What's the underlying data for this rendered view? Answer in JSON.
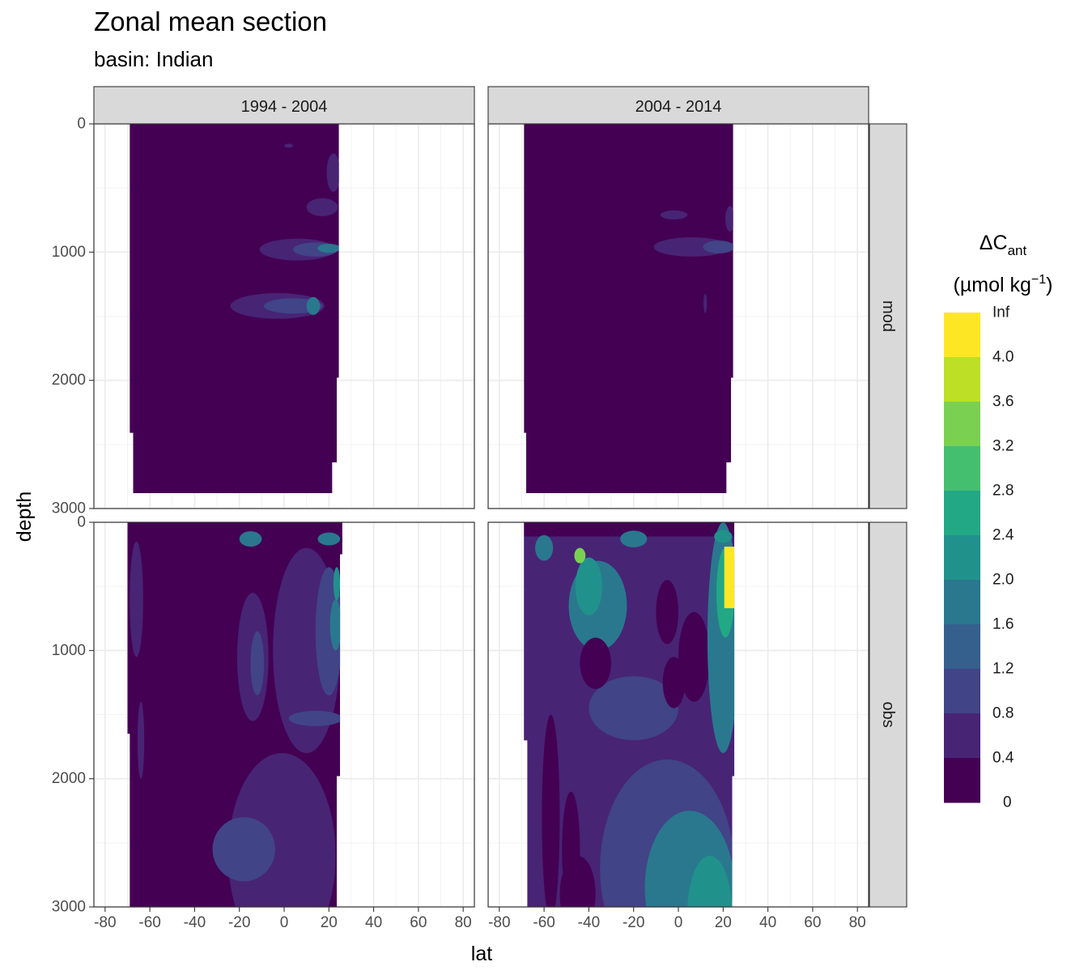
{
  "chart_data": {
    "type": "heatmap",
    "title": "Zonal mean section",
    "subtitle": "basin: Indian",
    "xlabel": "lat",
    "ylabel": "depth",
    "xlim": [
      -85,
      85
    ],
    "ylim": [
      3000,
      0
    ],
    "x_ticks": [
      "-80",
      "-60",
      "-40",
      "-20",
      "0",
      "20",
      "40",
      "60",
      "80"
    ],
    "x_tick_values": [
      -80,
      -60,
      -40,
      -20,
      0,
      20,
      40,
      60,
      80
    ],
    "y_ticks": [
      "0",
      "1000",
      "2000",
      "3000"
    ],
    "y_tick_values": [
      0,
      1000,
      2000,
      3000
    ],
    "facet_columns": [
      "1994 - 2004",
      "2004 - 2014"
    ],
    "facet_rows": [
      "mod",
      "obs"
    ],
    "grid": true,
    "legend": {
      "title": "ΔC",
      "title_sub": "ant",
      "unit_prefix": "(µmol kg",
      "unit_sup": "−1",
      "unit_suffix": ")",
      "placement": "right",
      "bins": [
        {
          "label": "Inf",
          "color": "#fde725"
        },
        {
          "label": "4.0",
          "color": "#bddf26"
        },
        {
          "label": "3.6",
          "color": "#7ad151"
        },
        {
          "label": "3.2",
          "color": "#44bf70"
        },
        {
          "label": "2.8",
          "color": "#22a884"
        },
        {
          "label": "2.4",
          "color": "#21918c"
        },
        {
          "label": "2.0",
          "color": "#2a788e"
        },
        {
          "label": "1.6",
          "color": "#355f8d"
        },
        {
          "label": "1.2",
          "color": "#414487"
        },
        {
          "label": "0.8",
          "color": "#482475"
        },
        {
          "label": "0.4",
          "color": "#440154"
        }
      ],
      "bottom_label": "0"
    },
    "panels": [
      {
        "row": "mod",
        "col": "1994 - 2004",
        "extent": [
          [
            -69,
            0
          ],
          [
            24.5,
            0
          ],
          [
            24.5,
            1980
          ],
          [
            23.5,
            1980
          ],
          [
            23.5,
            2640
          ],
          [
            21.5,
            2640
          ],
          [
            21.5,
            2880
          ],
          [
            -67.5,
            2880
          ],
          [
            -67.5,
            2410
          ],
          [
            -69,
            2410
          ]
        ],
        "features": [
          {
            "shape": "ellipse",
            "lat": 6,
            "depth": 980,
            "w": 34,
            "h": 170,
            "level": 0.6
          },
          {
            "shape": "ellipse",
            "lat": 14,
            "depth": 980,
            "w": 20,
            "h": 110,
            "level": 1.0
          },
          {
            "shape": "ellipse",
            "lat": 20,
            "depth": 970,
            "w": 10,
            "h": 70,
            "level": 1.6
          },
          {
            "shape": "ellipse",
            "lat": -3,
            "depth": 1420,
            "w": 42,
            "h": 200,
            "level": 0.6
          },
          {
            "shape": "ellipse",
            "lat": 4,
            "depth": 1420,
            "w": 26,
            "h": 120,
            "level": 1.0
          },
          {
            "shape": "ellipse",
            "lat": 13,
            "depth": 1420,
            "w": 6,
            "h": 140,
            "level": 1.6
          },
          {
            "shape": "ellipse",
            "lat": 17,
            "depth": 650,
            "w": 14,
            "h": 140,
            "level": 0.6
          },
          {
            "shape": "ellipse",
            "lat": 22,
            "depth": 380,
            "w": 6,
            "h": 300,
            "level": 0.6
          },
          {
            "shape": "ellipse",
            "lat": 2,
            "depth": 170,
            "w": 4,
            "h": 30,
            "level": 0.6
          }
        ]
      },
      {
        "row": "mod",
        "col": "2004 - 2014",
        "extent": [
          [
            -69,
            0
          ],
          [
            24.5,
            0
          ],
          [
            24.5,
            1980
          ],
          [
            23.5,
            1980
          ],
          [
            23.5,
            2640
          ],
          [
            21.5,
            2640
          ],
          [
            21.5,
            2880
          ],
          [
            -68,
            2880
          ],
          [
            -68,
            2410
          ],
          [
            -69,
            2410
          ]
        ],
        "features": [
          {
            "shape": "ellipse",
            "lat": 6,
            "depth": 960,
            "w": 34,
            "h": 150,
            "level": 0.6
          },
          {
            "shape": "ellipse",
            "lat": 18,
            "depth": 960,
            "w": 14,
            "h": 100,
            "level": 1.0
          },
          {
            "shape": "ellipse",
            "lat": -2,
            "depth": 710,
            "w": 12,
            "h": 70,
            "level": 0.6
          },
          {
            "shape": "ellipse",
            "lat": 23,
            "depth": 740,
            "w": 4,
            "h": 200,
            "level": 0.6
          },
          {
            "shape": "ellipse",
            "lat": 12,
            "depth": 1400,
            "w": 1.5,
            "h": 150,
            "level": 0.6
          }
        ]
      },
      {
        "row": "obs",
        "col": "1994 - 2004",
        "extent": [
          [
            -70,
            0
          ],
          [
            26,
            0
          ],
          [
            26,
            250
          ],
          [
            25,
            250
          ],
          [
            25,
            1980
          ],
          [
            23.5,
            1980
          ],
          [
            23.5,
            3000
          ],
          [
            -69,
            3000
          ],
          [
            -69,
            1650
          ],
          [
            -70,
            1650
          ],
          [
            -70,
            110
          ]
        ],
        "features": [
          {
            "shape": "rect",
            "lat": -70,
            "depth": 110,
            "w": 96,
            "h": 50,
            "level": 0
          },
          {
            "shape": "ellipse",
            "lat": -1,
            "depth": 2600,
            "w": 48,
            "h": 1600,
            "level": 0.6
          },
          {
            "shape": "ellipse",
            "lat": -18,
            "depth": 2550,
            "w": 28,
            "h": 500,
            "level": 1.0
          },
          {
            "shape": "ellipse",
            "lat": -14,
            "depth": 1050,
            "w": 14,
            "h": 1000,
            "level": 0.6
          },
          {
            "shape": "ellipse",
            "lat": -12,
            "depth": 1100,
            "w": 6,
            "h": 500,
            "level": 1.0
          },
          {
            "shape": "ellipse",
            "lat": 10,
            "depth": 1000,
            "w": 30,
            "h": 1600,
            "level": 0.6
          },
          {
            "shape": "ellipse",
            "lat": 20,
            "depth": 850,
            "w": 12,
            "h": 1000,
            "level": 1.0
          },
          {
            "shape": "ellipse",
            "lat": 23,
            "depth": 800,
            "w": 5,
            "h": 400,
            "level": 1.6
          },
          {
            "shape": "ellipse",
            "lat": 23.5,
            "depth": 480,
            "w": 3,
            "h": 260,
            "level": 2.0
          },
          {
            "shape": "ellipse",
            "lat": 14,
            "depth": 1530,
            "w": 24,
            "h": 120,
            "level": 1.0
          },
          {
            "shape": "ellipse",
            "lat": -15,
            "depth": 130,
            "w": 10,
            "h": 120,
            "level": 1.6
          },
          {
            "shape": "ellipse",
            "lat": 20,
            "depth": 130,
            "w": 10,
            "h": 100,
            "level": 1.6
          },
          {
            "shape": "ellipse",
            "lat": -66,
            "depth": 600,
            "w": 6,
            "h": 900,
            "level": 0.6
          },
          {
            "shape": "ellipse",
            "lat": -64,
            "depth": 1700,
            "w": 3,
            "h": 600,
            "level": 0.6
          }
        ]
      },
      {
        "row": "obs",
        "col": "2004 - 2014",
        "extent": [
          [
            -69,
            0
          ],
          [
            25,
            0
          ],
          [
            25,
            1980
          ],
          [
            24,
            1980
          ],
          [
            24,
            3000
          ],
          [
            -67.5,
            3000
          ],
          [
            -67.5,
            1700
          ],
          [
            -69,
            1700
          ],
          [
            -69,
            110
          ]
        ],
        "features": [
          {
            "shape": "rect",
            "lat": -69,
            "depth": 110,
            "w": 94,
            "h": 3000,
            "level": 0.6
          },
          {
            "shape": "rect",
            "lat": -69,
            "depth": 0,
            "w": 94,
            "h": 110,
            "level": 0
          },
          {
            "shape": "ellipse",
            "lat": -5,
            "depth": 2700,
            "w": 60,
            "h": 1700,
            "level": 1.0
          },
          {
            "shape": "ellipse",
            "lat": 5,
            "depth": 2850,
            "w": 40,
            "h": 1200,
            "level": 1.6
          },
          {
            "shape": "ellipse",
            "lat": 14,
            "depth": 3050,
            "w": 20,
            "h": 900,
            "level": 2.0
          },
          {
            "shape": "ellipse",
            "lat": 20,
            "depth": 3100,
            "w": 10,
            "h": 500,
            "level": 2.4
          },
          {
            "shape": "ellipse",
            "lat": -20,
            "depth": 1450,
            "w": 40,
            "h": 500,
            "level": 1.0
          },
          {
            "shape": "ellipse",
            "lat": -57,
            "depth": 2300,
            "w": 8,
            "h": 1600,
            "level": 0
          },
          {
            "shape": "ellipse",
            "lat": -48,
            "depth": 2550,
            "w": 8,
            "h": 900,
            "level": 0
          },
          {
            "shape": "ellipse",
            "lat": -45,
            "depth": 2900,
            "w": 16,
            "h": 600,
            "level": 0
          },
          {
            "shape": "ellipse",
            "lat": -36,
            "depth": 650,
            "w": 26,
            "h": 700,
            "level": 1.6
          },
          {
            "shape": "ellipse",
            "lat": -40,
            "depth": 500,
            "w": 12,
            "h": 450,
            "level": 2.4
          },
          {
            "shape": "ellipse",
            "lat": -44,
            "depth": 260,
            "w": 5,
            "h": 120,
            "level": 3.2
          },
          {
            "shape": "ellipse",
            "lat": -37,
            "depth": 1100,
            "w": 14,
            "h": 400,
            "level": 0
          },
          {
            "shape": "ellipse",
            "lat": -5,
            "depth": 700,
            "w": 10,
            "h": 500,
            "level": 0
          },
          {
            "shape": "ellipse",
            "lat": 7,
            "depth": 1050,
            "w": 14,
            "h": 700,
            "level": 0
          },
          {
            "shape": "ellipse",
            "lat": -2,
            "depth": 1250,
            "w": 10,
            "h": 400,
            "level": 0
          },
          {
            "shape": "ellipse",
            "lat": 20,
            "depth": 900,
            "w": 14,
            "h": 1800,
            "level": 1.6
          },
          {
            "shape": "ellipse",
            "lat": 21,
            "depth": 550,
            "w": 8,
            "h": 700,
            "level": 2.8
          },
          {
            "shape": "rect",
            "lat": 20.5,
            "depth": 190,
            "w": 4.5,
            "h": 480,
            "level": 4.1
          },
          {
            "shape": "ellipse",
            "lat": -20,
            "depth": 130,
            "w": 12,
            "h": 130,
            "level": 1.6
          },
          {
            "shape": "ellipse",
            "lat": -60,
            "depth": 200,
            "w": 8,
            "h": 200,
            "level": 1.6
          },
          {
            "shape": "ellipse",
            "lat": 20,
            "depth": 110,
            "w": 8,
            "h": 100,
            "level": 2.0
          }
        ]
      }
    ]
  }
}
